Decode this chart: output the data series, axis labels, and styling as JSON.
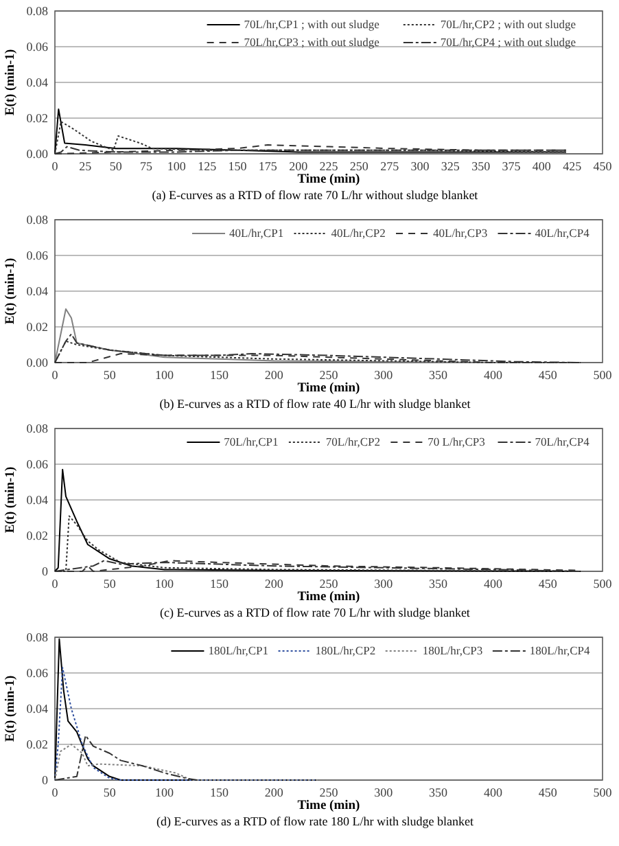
{
  "chart_data": [
    {
      "type": "line",
      "title": "(a) E-curves as a RTD of flow rate 70 L/hr without sludge blanket",
      "xlabel": "Time (min)",
      "ylabel": "E(t) (min-1)",
      "xlim": [
        0,
        450
      ],
      "xticks": [
        0,
        25,
        50,
        75,
        100,
        125,
        150,
        175,
        200,
        225,
        250,
        275,
        300,
        325,
        350,
        375,
        400,
        425,
        450
      ],
      "ylim": [
        0,
        0.08
      ],
      "yticks": [
        {
          "value": 0,
          "label": "0.00"
        },
        0.02,
        0.04,
        0.06,
        0.08
      ],
      "grid": "y",
      "legend": "top right",
      "series": [
        {
          "name": "70L/hr,CP1 ; with out sludge",
          "color": "#000000",
          "line_style": "solid",
          "x": [
            0,
            3,
            8,
            25,
            50,
            100,
            150,
            200,
            250,
            300,
            350,
            420
          ],
          "values": [
            0,
            0.025,
            0.006,
            0.005,
            0.003,
            0.003,
            0.002,
            0.001,
            0.001,
            0.001,
            0.001,
            0.001
          ]
        },
        {
          "name": "70L/hr,CP2 ; with out sludge",
          "color": "#333333",
          "line_style": "dotted",
          "x": [
            0,
            5,
            15,
            30,
            48,
            52,
            70,
            80,
            125,
            200,
            300,
            420
          ],
          "values": [
            0,
            0.018,
            0.014,
            0.007,
            0.002,
            0.01,
            0.006,
            0.003,
            0.002,
            0.002,
            0.002,
            0.001
          ]
        },
        {
          "name": "70L/hr,CP3 ; with out sludge",
          "color": "#333333",
          "line_style": "dashed",
          "x": [
            0,
            50,
            100,
            150,
            175,
            225,
            275,
            350,
            420
          ],
          "values": [
            0,
            0.001,
            0.002,
            0.003,
            0.005,
            0.004,
            0.003,
            0.002,
            0.002
          ]
        },
        {
          "name": "70L/hr,CP4 ; with out sludge",
          "color": "#333333",
          "line_style": "longdash",
          "x": [
            0,
            5,
            10,
            20,
            50,
            100,
            150,
            250,
            350,
            420
          ],
          "values": [
            0,
            0.001,
            0.004,
            0.002,
            0.001,
            0.001,
            0.002,
            0.002,
            0.002,
            0.002
          ]
        }
      ]
    },
    {
      "type": "line",
      "title": "(b) E-curves as a RTD of flow rate 40 L/hr with sludge blanket",
      "xlabel": "Time (min)",
      "ylabel": "E(t) (min-1)",
      "xlim": [
        0,
        500
      ],
      "xticks": [
        0,
        50,
        100,
        150,
        200,
        250,
        300,
        350,
        400,
        450,
        500
      ],
      "ylim": [
        0,
        0.08
      ],
      "yticks": [
        {
          "value": 0,
          "label": "0.00"
        },
        0.02,
        0.04,
        0.06,
        0.08
      ],
      "grid": "y",
      "legend": "top right",
      "series": [
        {
          "name": "40L/hr,CP1",
          "color": "#808080",
          "line_style": "solid",
          "x": [
            0,
            10,
            15,
            20,
            50,
            100,
            150,
            200,
            300,
            400,
            480
          ],
          "values": [
            0,
            0.03,
            0.025,
            0.011,
            0.007,
            0.003,
            0.002,
            0.001,
            0.0005,
            0,
            0
          ]
        },
        {
          "name": "40L/hr,CP2",
          "color": "#333333",
          "line_style": "dotted",
          "x": [
            0,
            10,
            20,
            50,
            100,
            150,
            200,
            300,
            400,
            480
          ],
          "values": [
            0,
            0.012,
            0.01,
            0.007,
            0.004,
            0.003,
            0.002,
            0.001,
            0,
            0
          ]
        },
        {
          "name": "40L/hr,CP3",
          "color": "#333333",
          "line_style": "dashed",
          "x": [
            0,
            30,
            60,
            100,
            150,
            200,
            250,
            300,
            350,
            400,
            480
          ],
          "values": [
            0,
            0,
            0.005,
            0.004,
            0.004,
            0.004,
            0.003,
            0.002,
            0.001,
            0,
            0
          ]
        },
        {
          "name": "40L/hr,CP4",
          "color": "#333333",
          "line_style": "longdash",
          "x": [
            0,
            10,
            15,
            20,
            50,
            100,
            150,
            180,
            250,
            350,
            420,
            480
          ],
          "values": [
            0,
            0.012,
            0.016,
            0.011,
            0.007,
            0.004,
            0.004,
            0.005,
            0.004,
            0.002,
            0.0005,
            0
          ]
        }
      ]
    },
    {
      "type": "line",
      "title": "(c) E-curves as a RTD of flow rate 70 L/hr with sludge blanket",
      "xlabel": "Time (min)",
      "ylabel": "E(t) (min-1)",
      "xlim": [
        0,
        500
      ],
      "xticks": [
        0,
        50,
        100,
        150,
        200,
        250,
        300,
        350,
        400,
        450,
        500
      ],
      "ylim": [
        0,
        0.08
      ],
      "yticks": [
        0,
        0.02,
        0.04,
        0.06,
        0.08
      ],
      "grid": "y",
      "legend": "top right",
      "series": [
        {
          "name": "70L/hr,CP1",
          "color": "#000000",
          "line_style": "solid",
          "x": [
            0,
            3,
            7,
            10,
            20,
            30,
            40,
            50,
            70,
            100,
            200,
            480
          ],
          "values": [
            0,
            0.002,
            0.057,
            0.042,
            0.028,
            0.015,
            0.011,
            0.007,
            0.003,
            0.001,
            0.0005,
            0
          ]
        },
        {
          "name": "70L/hr,CP2",
          "color": "#333333",
          "line_style": "dotted",
          "x": [
            0,
            10,
            13,
            20,
            30,
            40,
            60,
            100,
            200,
            480
          ],
          "values": [
            0,
            0,
            0.031,
            0.026,
            0.017,
            0.012,
            0.005,
            0.002,
            0.001,
            0
          ]
        },
        {
          "name": "70 L/hr,CP3",
          "color": "#333333",
          "line_style": "dashed",
          "x": [
            0,
            25,
            30,
            35,
            80,
            105,
            150,
            250,
            350,
            480
          ],
          "values": [
            0,
            0,
            0.003,
            0,
            0.003,
            0.006,
            0.005,
            0.003,
            0.002,
            0.0005
          ]
        },
        {
          "name": "70L/hr,CP4",
          "color": "#333333",
          "line_style": "longdash",
          "x": [
            0,
            35,
            45,
            60,
            100,
            150,
            200,
            300,
            400,
            480
          ],
          "values": [
            0,
            0.003,
            0.006,
            0.004,
            0.005,
            0.004,
            0.003,
            0.002,
            0.001,
            0
          ]
        }
      ]
    },
    {
      "type": "line",
      "title": "(d) E-curves as a RTD of flow rate 180 L/hr with sludge blanket",
      "xlabel": "Time (min)",
      "ylabel": "E(t) (min-1)",
      "xlim": [
        0,
        500
      ],
      "xticks": [
        0,
        50,
        100,
        150,
        200,
        250,
        300,
        350,
        400,
        450,
        500
      ],
      "ylim": [
        0,
        0.08
      ],
      "yticks": [
        0,
        0.02,
        0.04,
        0.06,
        0.08
      ],
      "grid": "y",
      "legend": "top right",
      "series": [
        {
          "name": "180L/hr,CP1",
          "color": "#000000",
          "line_style": "solid",
          "x": [
            0,
            4,
            8,
            12,
            20,
            30,
            35,
            50,
            60,
            240
          ],
          "values": [
            0,
            0.079,
            0.05,
            0.033,
            0.027,
            0.012,
            0.008,
            0.002,
            0,
            0
          ]
        },
        {
          "name": "180L/hr,CP2",
          "color": "#3050a0",
          "line_style": "dotted",
          "x": [
            0,
            3,
            7,
            15,
            25,
            35,
            50,
            60,
            240
          ],
          "values": [
            0,
            0.02,
            0.063,
            0.04,
            0.02,
            0.007,
            0.001,
            0,
            0
          ]
        },
        {
          "name": "180L/hr,CP3",
          "color": "#808080",
          "line_style": "dotted",
          "x": [
            0,
            5,
            15,
            25,
            30,
            40,
            80,
            110,
            125,
            240
          ],
          "values": [
            0,
            0.016,
            0.02,
            0.015,
            0.008,
            0.009,
            0.008,
            0.004,
            0,
            0
          ]
        },
        {
          "name": "180L/hr,CP4",
          "color": "#333333",
          "line_style": "longdash",
          "x": [
            0,
            20,
            28,
            35,
            50,
            60,
            80,
            100,
            120,
            130
          ],
          "values": [
            0,
            0.002,
            0.025,
            0.019,
            0.015,
            0.011,
            0.008,
            0.004,
            0.001,
            0
          ]
        }
      ]
    }
  ]
}
